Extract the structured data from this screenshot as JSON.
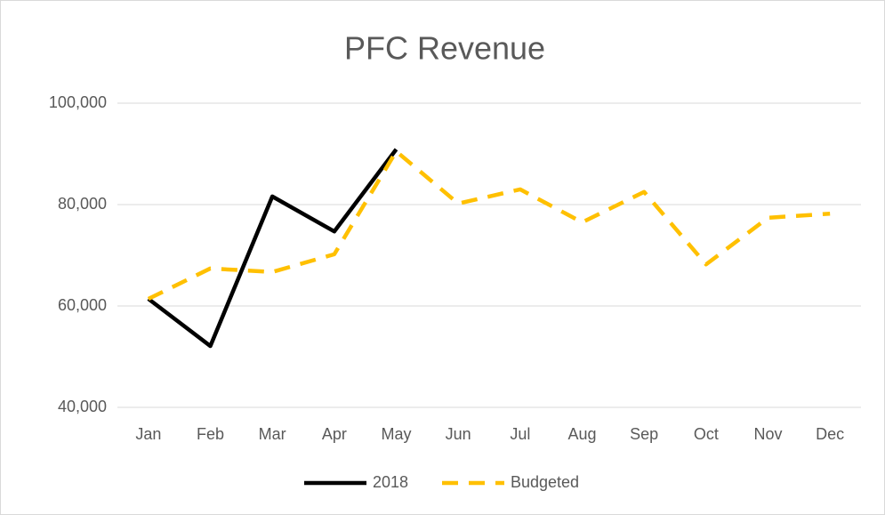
{
  "chart_data": {
    "type": "line",
    "title": "PFC Revenue",
    "categories": [
      "Jan",
      "Feb",
      "Mar",
      "Apr",
      "May",
      "Jun",
      "Jul",
      "Aug",
      "Sep",
      "Oct",
      "Nov",
      "Dec"
    ],
    "series": [
      {
        "name": "2018",
        "color": "#000000",
        "dashed": false,
        "values": [
          61400,
          52100,
          81600,
          74700,
          90900,
          null,
          null,
          null,
          null,
          null,
          null,
          null
        ]
      },
      {
        "name": "Budgeted",
        "color": "#ffc000",
        "dashed": true,
        "values": [
          61400,
          67400,
          66700,
          70200,
          90500,
          80200,
          83000,
          76500,
          82500,
          68200,
          77400,
          78200
        ]
      }
    ],
    "ylim": [
      40000,
      100000
    ],
    "yticks": [
      {
        "value": 40000,
        "label": "40,000"
      },
      {
        "value": 60000,
        "label": "60,000"
      },
      {
        "value": 80000,
        "label": "80,000"
      },
      {
        "value": 100000,
        "label": "100,000"
      }
    ],
    "grid": true,
    "legend": "bottom"
  }
}
